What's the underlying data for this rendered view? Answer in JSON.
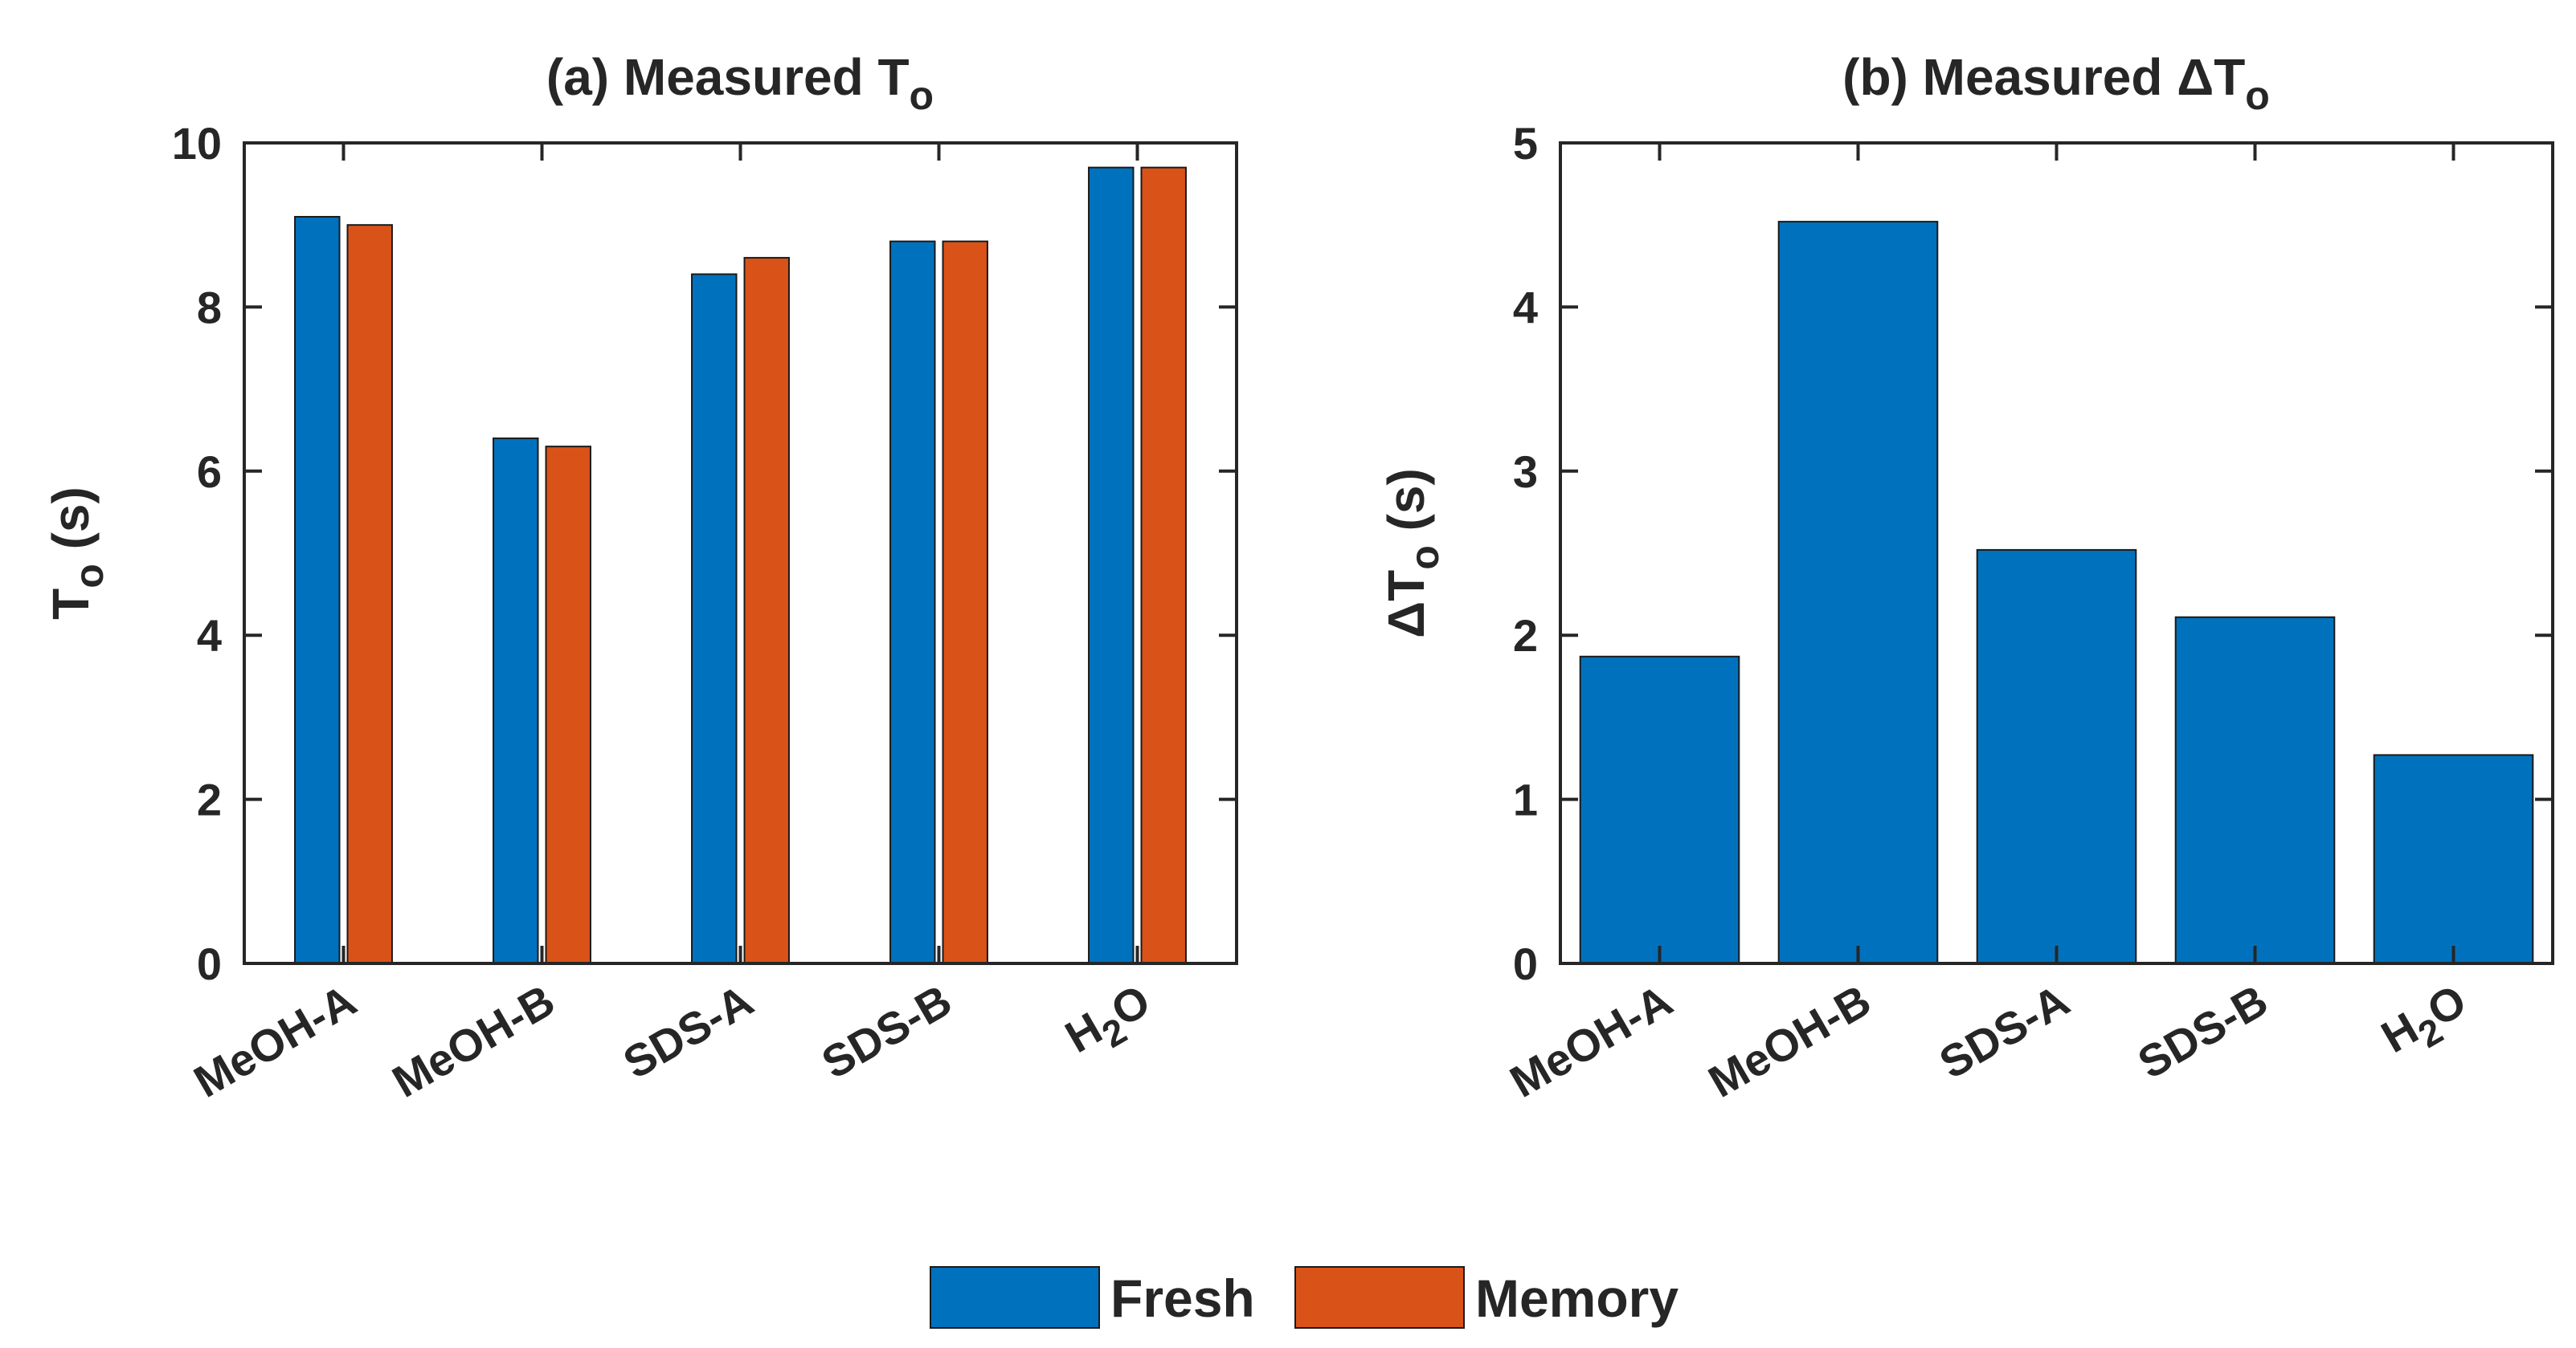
{
  "chart_data": [
    {
      "type": "bar",
      "title": "(a) Measured T",
      "title_sub": "o",
      "xlabel": "",
      "ylabel": "T",
      "ylabel_sub": "o",
      "ylabel_unit": " (s)",
      "ylim": [
        0,
        10
      ],
      "yticks": [
        0,
        2,
        4,
        6,
        8,
        10
      ],
      "categories": [
        "MeOH-A",
        "MeOH-B",
        "SDS-A",
        "SDS-B",
        "H2O"
      ],
      "category_labels": [
        {
          "main": "MeOH-A",
          "sub": "",
          "tail": ""
        },
        {
          "main": "MeOH-B",
          "sub": "",
          "tail": ""
        },
        {
          "main": "SDS-A",
          "sub": "",
          "tail": ""
        },
        {
          "main": "SDS-B",
          "sub": "",
          "tail": ""
        },
        {
          "main": "H",
          "sub": "2",
          "tail": "O"
        }
      ],
      "series": [
        {
          "name": "Fresh",
          "color": "#0072BD",
          "values": [
            9.1,
            6.4,
            8.4,
            8.8,
            9.7
          ]
        },
        {
          "name": "Memory",
          "color": "#D95319",
          "values": [
            9.0,
            6.3,
            8.6,
            8.8,
            9.7
          ]
        }
      ]
    },
    {
      "type": "bar",
      "title": "(b) Measured ΔT",
      "title_sub": "o",
      "xlabel": "",
      "ylabel": "ΔT",
      "ylabel_sub": "o",
      "ylabel_unit": " (s)",
      "ylim": [
        0,
        5
      ],
      "yticks": [
        0,
        1,
        2,
        3,
        4,
        5
      ],
      "categories": [
        "MeOH-A",
        "MeOH-B",
        "SDS-A",
        "SDS-B",
        "H2O"
      ],
      "category_labels": [
        {
          "main": "MeOH-A",
          "sub": "",
          "tail": ""
        },
        {
          "main": "MeOH-B",
          "sub": "",
          "tail": ""
        },
        {
          "main": "SDS-A",
          "sub": "",
          "tail": ""
        },
        {
          "main": "SDS-B",
          "sub": "",
          "tail": ""
        },
        {
          "main": "H",
          "sub": "2",
          "tail": "O"
        }
      ],
      "series": [
        {
          "name": "Fresh",
          "color": "#0072BD",
          "values": [
            1.87,
            4.52,
            2.52,
            2.11,
            1.27
          ]
        }
      ]
    }
  ],
  "legend": {
    "position": "bottom-center",
    "items": [
      {
        "name": "Fresh",
        "color": "#0072BD"
      },
      {
        "name": "Memory",
        "color": "#D95319"
      }
    ]
  }
}
